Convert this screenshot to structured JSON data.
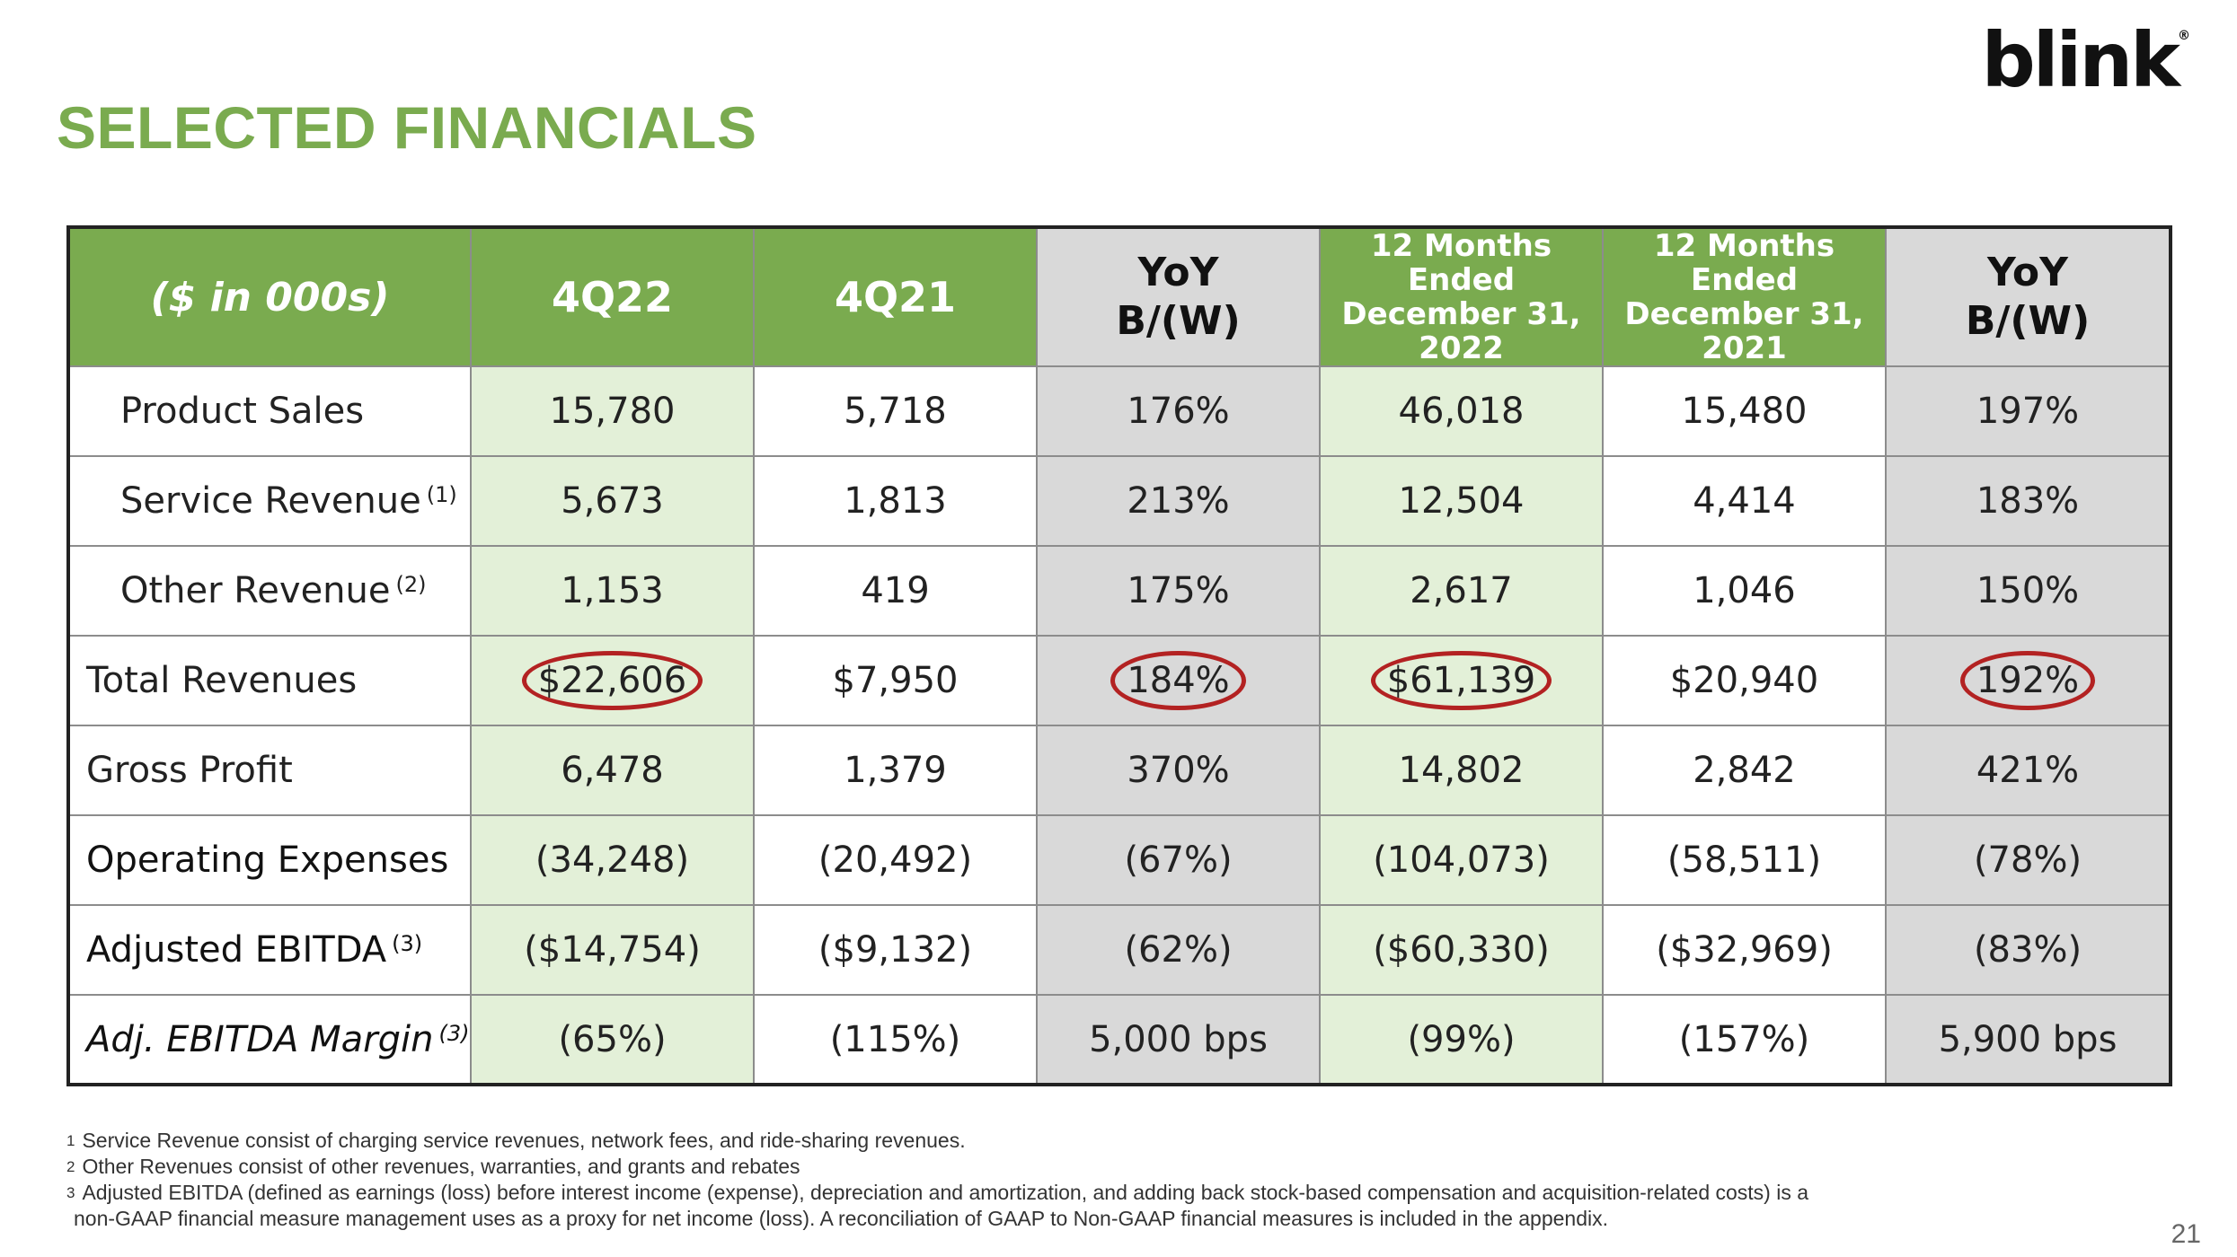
{
  "brand": {
    "logo": "blink",
    "trademark": "®"
  },
  "title": "SELECTED FINANCIALS",
  "colors": {
    "green": "#7aab4f",
    "light_green": "#e3f0d8",
    "gray": "#d9d9d9",
    "circle_red": "#b32222"
  },
  "table": {
    "headers": {
      "label": "($ in 000s)",
      "q4_22": "4Q22",
      "q4_21": "4Q21",
      "yoy_q_line1": "YoY",
      "yoy_q_line2": "B/(W)",
      "fy22_line1": "12 Months Ended",
      "fy22_line2": "December 31,",
      "fy22_line3": "2022",
      "fy21_line1": "12 Months Ended",
      "fy21_line2": "December 31,",
      "fy21_line3": "2021",
      "yoy_fy_line1": "YoY",
      "yoy_fy_line2": "B/(W)"
    },
    "rows": [
      {
        "label": "Product Sales",
        "footnote": "",
        "q4_22": "15,780",
        "q4_21": "5,718",
        "yoy_q": "176%",
        "fy22": "46,018",
        "fy21": "15,480",
        "yoy_fy": "197%"
      },
      {
        "label": "Service Revenue",
        "footnote": "(1)",
        "q4_22": "5,673",
        "q4_21": "1,813",
        "yoy_q": "213%",
        "fy22": "12,504",
        "fy21": "4,414",
        "yoy_fy": "183%"
      },
      {
        "label": "Other Revenue",
        "footnote": "(2)",
        "q4_22": "1,153",
        "q4_21": "419",
        "yoy_q": "175%",
        "fy22": "2,617",
        "fy21": "1,046",
        "yoy_fy": "150%"
      },
      {
        "label": "Total Revenues",
        "footnote": "",
        "q4_22": "$22,606",
        "q4_21": "$7,950",
        "yoy_q": "184%",
        "fy22": "$61,139",
        "fy21": "$20,940",
        "yoy_fy": "192%"
      },
      {
        "label": "Gross Profit",
        "footnote": "",
        "q4_22": "6,478",
        "q4_21": "1,379",
        "yoy_q": "370%",
        "fy22": "14,802",
        "fy21": "2,842",
        "yoy_fy": "421%"
      },
      {
        "label": "Operating Expenses",
        "footnote": "",
        "q4_22": "(34,248)",
        "q4_21": "(20,492)",
        "yoy_q": "(67%)",
        "fy22": "(104,073)",
        "fy21": "(58,511)",
        "yoy_fy": "(78%)"
      },
      {
        "label": "Adjusted EBITDA",
        "footnote": "(3)",
        "q4_22": "($14,754)",
        "q4_21": "($9,132)",
        "yoy_q": "(62%)",
        "fy22": "($60,330)",
        "fy21": "($32,969)",
        "yoy_fy": "(83%)"
      },
      {
        "label": "Adj. EBITDA Margin",
        "footnote": "(3)",
        "q4_22": "(65%)",
        "q4_21": "(115%)",
        "yoy_q": "5,000 bps",
        "fy22": "(99%)",
        "fy21": "(157%)",
        "yoy_fy": "5,900 bps"
      }
    ]
  },
  "footnotes": {
    "fn1_num": "1",
    "fn1": "Service Revenue consist of charging service revenues, network fees, and ride-sharing revenues.",
    "fn2_num": "2",
    "fn2": "Other Revenues consist of other revenues, warranties, and grants and rebates",
    "fn3_num": "3",
    "fn3": "Adjusted EBITDA (defined as earnings (loss) before interest income (expense), depreciation and amortization, and adding back stock-based compensation and acquisition-related costs) is a",
    "fn3_cont": "non-GAAP financial measure management uses as a proxy for net income (loss).  A reconciliation of GAAP to Non-GAAP financial measures is included in the appendix."
  },
  "page_number": "21"
}
